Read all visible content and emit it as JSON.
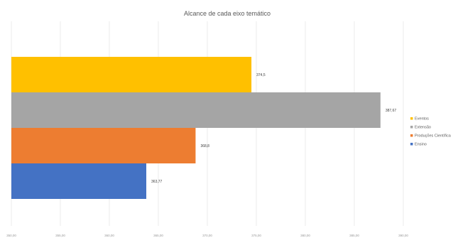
{
  "chart_data": {
    "type": "bar",
    "orientation": "horizontal",
    "title": "Alcance de cada eixo temático",
    "xlim": [
      350,
      390
    ],
    "xticks": [
      "350,00",
      "355,00",
      "360,00",
      "365,00",
      "370,00",
      "375,00",
      "380,00",
      "385,00",
      "390,00"
    ],
    "grid": true,
    "legend_position": "right",
    "series": [
      {
        "name": "Ensino",
        "value": 363.77,
        "label": "363,77",
        "color": "#4472C4"
      },
      {
        "name": "Produções Científica",
        "value": 368.8,
        "label": "368,8",
        "color": "#ED7D31"
      },
      {
        "name": "Extensão",
        "value": 387.67,
        "label": "387,67",
        "color": "#A5A5A5"
      },
      {
        "name": "Eventos",
        "value": 374.5,
        "label": "374,5",
        "color": "#FFC000"
      }
    ]
  }
}
